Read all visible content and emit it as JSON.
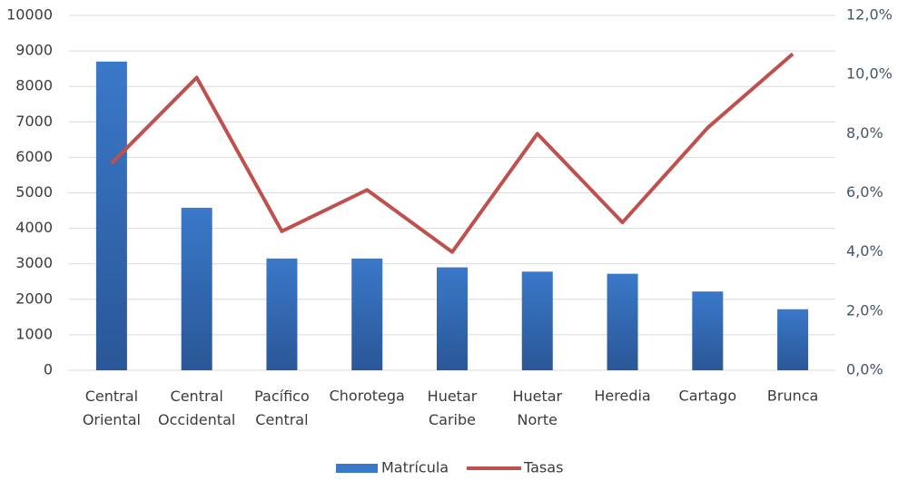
{
  "chart_data": {
    "type": "bar",
    "categories": [
      "Central Oriental",
      "Central Occidental",
      "Pacífico Central",
      "Chorotega",
      "Huetar Caribe",
      "Huetar Norte",
      "Heredia",
      "Cartago",
      "Brunca"
    ],
    "series": [
      {
        "name": "Matrícula",
        "color": "#3a78c9",
        "values": [
          8700,
          4580,
          3150,
          3150,
          2900,
          2780,
          2720,
          2220,
          1720
        ]
      },
      {
        "name": "Tasas",
        "color": "#c0504d",
        "type": "line",
        "axis": "y2",
        "values": [
          7.0,
          9.9,
          4.7,
          6.1,
          4.0,
          8.0,
          5.0,
          8.2,
          10.7
        ]
      }
    ],
    "ylim": [
      0,
      10000
    ],
    "yticks": [
      0,
      1000,
      2000,
      3000,
      4000,
      5000,
      6000,
      7000,
      8000,
      9000,
      10000
    ],
    "y2lim": [
      0,
      12
    ],
    "y2ticks": [
      {
        "value": 0,
        "label": "0,0%"
      },
      {
        "value": 2,
        "label": "2,0%"
      },
      {
        "value": 4,
        "label": "4,0%"
      },
      {
        "value": 6,
        "label": "6,0%"
      },
      {
        "value": 8,
        "label": "8,0%"
      },
      {
        "value": 10,
        "label": "10,0%"
      },
      {
        "value": 12,
        "label": "12,0%"
      }
    ],
    "grid": true,
    "legend": "bottom"
  }
}
